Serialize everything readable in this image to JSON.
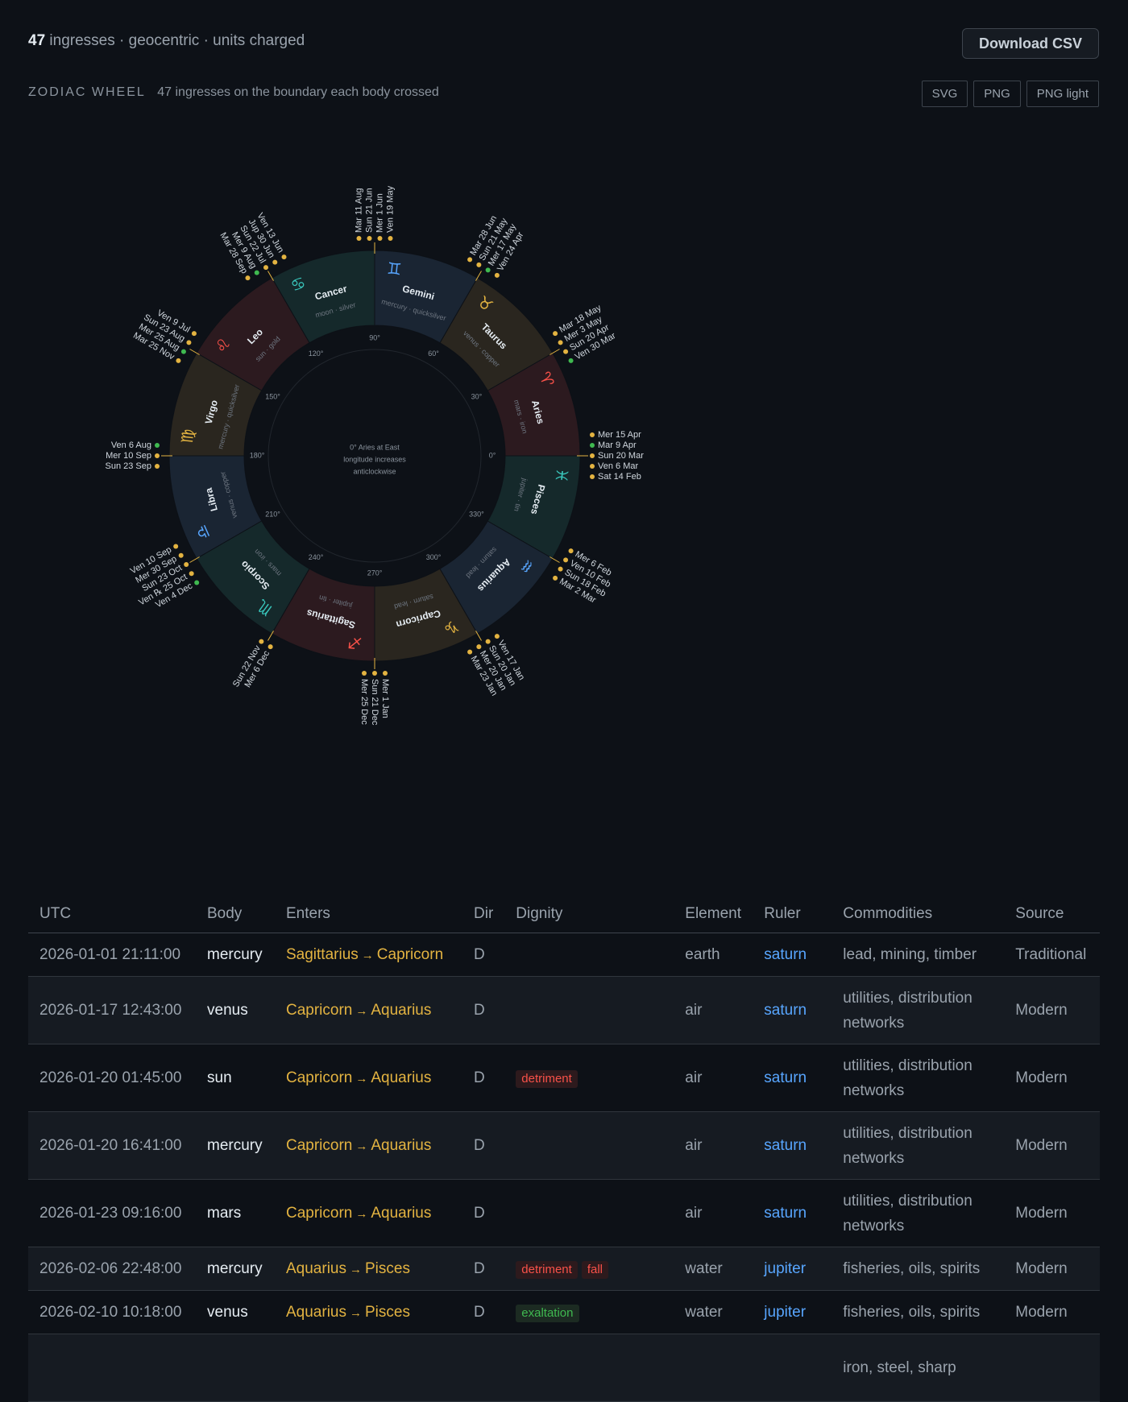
{
  "header": {
    "count": "47",
    "summary": "ingresses · geocentric · units charged",
    "download_label": "Download CSV"
  },
  "wheel_section": {
    "label": "ZODIAC WHEEL",
    "subtitle": "47 ingresses on the boundary each body crossed",
    "buttons": [
      "SVG",
      "PNG",
      "PNG light"
    ]
  },
  "wheel": {
    "center_note": [
      "0° Aries at East",
      "longitude increases",
      "anticlockwise"
    ],
    "colors": {
      "fire": "#2c1a1f",
      "earth": "#2a261f",
      "air": "#1a2533",
      "water": "#15292b",
      "dot_direct": "#e3b341",
      "dot_other": "#3fb950"
    },
    "signs": [
      {
        "name": "Aries",
        "glyph": "♈",
        "ruler": "mars · iron",
        "element": "fire",
        "glyph_color": "#f85149"
      },
      {
        "name": "Taurus",
        "glyph": "♉",
        "ruler": "venus · copper",
        "element": "earth",
        "glyph_color": "#e3b341"
      },
      {
        "name": "Gemini",
        "glyph": "♊",
        "ruler": "mercury · quicksilver",
        "element": "air",
        "glyph_color": "#58a6ff"
      },
      {
        "name": "Cancer",
        "glyph": "♋",
        "ruler": "moon · silver",
        "element": "water",
        "glyph_color": "#39c5bb"
      },
      {
        "name": "Leo",
        "glyph": "♌",
        "ruler": "sun · gold",
        "element": "fire",
        "glyph_color": "#f85149"
      },
      {
        "name": "Virgo",
        "glyph": "♍",
        "ruler": "mercury · quicksilver",
        "element": "earth",
        "glyph_color": "#e3b341"
      },
      {
        "name": "Libra",
        "glyph": "♎",
        "ruler": "venus · copper",
        "element": "air",
        "glyph_color": "#58a6ff"
      },
      {
        "name": "Scorpio",
        "glyph": "♏",
        "ruler": "mars · iron",
        "element": "water",
        "glyph_color": "#39c5bb"
      },
      {
        "name": "Sagittarius",
        "glyph": "♐",
        "ruler": "jupiter · tin",
        "element": "fire",
        "glyph_color": "#f85149"
      },
      {
        "name": "Capricorn",
        "glyph": "♑",
        "ruler": "saturn · lead",
        "element": "earth",
        "glyph_color": "#e3b341"
      },
      {
        "name": "Aquarius",
        "glyph": "♒",
        "ruler": "saturn · lead",
        "element": "air",
        "glyph_color": "#58a6ff"
      },
      {
        "name": "Pisces",
        "glyph": "♓",
        "ruler": "jupiter · tin",
        "element": "water",
        "glyph_color": "#39c5bb"
      }
    ],
    "degree_labels": [
      "0°",
      "30°",
      "60°",
      "90°",
      "120°",
      "150°",
      "180°",
      "210°",
      "240°",
      "270°",
      "300°",
      "330°"
    ],
    "boundaries": [
      {
        "longitude": 0,
        "events": [
          {
            "label": "Sat 14 Feb",
            "kind": "direct"
          },
          {
            "label": "Ven 6 Mar",
            "kind": "direct"
          },
          {
            "label": "Sun 20 Mar",
            "kind": "direct"
          },
          {
            "label": "Mar 9 Apr",
            "kind": "other"
          },
          {
            "label": "Mer 15 Apr",
            "kind": "direct"
          }
        ]
      },
      {
        "longitude": 30,
        "events": [
          {
            "label": "Ven 30 Mar",
            "kind": "other"
          },
          {
            "label": "Sun 20 Apr",
            "kind": "direct"
          },
          {
            "label": "Mer 3 May",
            "kind": "direct"
          },
          {
            "label": "Mar 18 May",
            "kind": "direct"
          }
        ]
      },
      {
        "longitude": 60,
        "events": [
          {
            "label": "Ven 24 Apr",
            "kind": "direct"
          },
          {
            "label": "Mer 17 May",
            "kind": "other"
          },
          {
            "label": "Sun 21 May",
            "kind": "direct"
          },
          {
            "label": "Mar 28 Jun",
            "kind": "direct"
          }
        ]
      },
      {
        "longitude": 90,
        "events": [
          {
            "label": "Ven 19 May",
            "kind": "direct"
          },
          {
            "label": "Mer 1 Jun",
            "kind": "direct"
          },
          {
            "label": "Sun 21 Jun",
            "kind": "direct"
          },
          {
            "label": "Mar 11 Aug",
            "kind": "direct"
          }
        ]
      },
      {
        "longitude": 120,
        "events": [
          {
            "label": "Ven 13 Jun",
            "kind": "direct"
          },
          {
            "label": "Jup 30 Jun",
            "kind": "direct"
          },
          {
            "label": "Sun 22 Jul",
            "kind": "direct"
          },
          {
            "label": "Mer 9 Aug",
            "kind": "other"
          },
          {
            "label": "Mar 28 Sep",
            "kind": "direct"
          }
        ]
      },
      {
        "longitude": 150,
        "events": [
          {
            "label": "Ven 9 Jul",
            "kind": "direct"
          },
          {
            "label": "Sun 23 Aug",
            "kind": "direct"
          },
          {
            "label": "Mer 25 Aug",
            "kind": "other"
          },
          {
            "label": "Mar 25 Nov",
            "kind": "direct"
          }
        ]
      },
      {
        "longitude": 180,
        "events": [
          {
            "label": "Ven 6 Aug",
            "kind": "other"
          },
          {
            "label": "Mer 10 Sep",
            "kind": "direct"
          },
          {
            "label": "Sun 23 Sep",
            "kind": "direct"
          }
        ]
      },
      {
        "longitude": 210,
        "events": [
          {
            "label": "Ven 10 Sep",
            "kind": "direct"
          },
          {
            "label": "Mer 30 Sep",
            "kind": "direct"
          },
          {
            "label": "Sun 23 Oct",
            "kind": "direct"
          },
          {
            "label": "Ven ℞ 25 Oct",
            "kind": "direct"
          },
          {
            "label": "Ven 4 Dec",
            "kind": "other"
          }
        ]
      },
      {
        "longitude": 240,
        "events": [
          {
            "label": "Sun 22 Nov",
            "kind": "direct"
          },
          {
            "label": "Mer 6 Dec",
            "kind": "direct"
          }
        ]
      },
      {
        "longitude": 270,
        "events": [
          {
            "label": "Mer 25 Dec",
            "kind": "direct"
          },
          {
            "label": "Sun 21 Dec",
            "kind": "direct"
          },
          {
            "label": "Mer 1 Jan",
            "kind": "direct"
          }
        ]
      },
      {
        "longitude": 300,
        "events": [
          {
            "label": "Mar 23 Jan",
            "kind": "direct"
          },
          {
            "label": "Mer 20 Jan",
            "kind": "direct"
          },
          {
            "label": "Sun 20 Jan",
            "kind": "direct"
          },
          {
            "label": "Ven 17 Jan",
            "kind": "direct"
          }
        ]
      },
      {
        "longitude": 330,
        "events": [
          {
            "label": "Mar 2 Mar",
            "kind": "direct"
          },
          {
            "label": "Sun 18 Feb",
            "kind": "direct"
          },
          {
            "label": "Ven 10 Feb",
            "kind": "direct"
          },
          {
            "label": "Mer 6 Feb",
            "kind": "direct"
          }
        ]
      }
    ]
  },
  "table": {
    "headers": [
      "UTC",
      "Body",
      "Enters",
      "Dir",
      "Dignity",
      "Element",
      "Ruler",
      "Commodities",
      "Source"
    ],
    "rows": [
      {
        "utc": "2026-01-01 21:11:00",
        "body": "mercury",
        "from": "Sagittarius",
        "to": "Capricorn",
        "dir": "D",
        "dignity": [],
        "element": "earth",
        "ruler": "saturn",
        "commodities": "lead, mining, timber",
        "source": "Traditional"
      },
      {
        "utc": "2026-01-17 12:43:00",
        "body": "venus",
        "from": "Capricorn",
        "to": "Aquarius",
        "dir": "D",
        "dignity": [],
        "element": "air",
        "ruler": "saturn",
        "commodities": "utilities, distribution networks",
        "source": "Modern"
      },
      {
        "utc": "2026-01-20 01:45:00",
        "body": "sun",
        "from": "Capricorn",
        "to": "Aquarius",
        "dir": "D",
        "dignity": [
          "detriment"
        ],
        "element": "air",
        "ruler": "saturn",
        "commodities": "utilities, distribution networks",
        "source": "Modern"
      },
      {
        "utc": "2026-01-20 16:41:00",
        "body": "mercury",
        "from": "Capricorn",
        "to": "Aquarius",
        "dir": "D",
        "dignity": [],
        "element": "air",
        "ruler": "saturn",
        "commodities": "utilities, distribution networks",
        "source": "Modern"
      },
      {
        "utc": "2026-01-23 09:16:00",
        "body": "mars",
        "from": "Capricorn",
        "to": "Aquarius",
        "dir": "D",
        "dignity": [],
        "element": "air",
        "ruler": "saturn",
        "commodities": "utilities, distribution networks",
        "source": "Modern"
      },
      {
        "utc": "2026-02-06 22:48:00",
        "body": "mercury",
        "from": "Aquarius",
        "to": "Pisces",
        "dir": "D",
        "dignity": [
          "detriment",
          "fall"
        ],
        "element": "water",
        "ruler": "jupiter",
        "commodities": "fisheries, oils, spirits",
        "source": "Modern"
      },
      {
        "utc": "2026-02-10 10:18:00",
        "body": "venus",
        "from": "Aquarius",
        "to": "Pisces",
        "dir": "D",
        "dignity": [
          "exaltation"
        ],
        "element": "water",
        "ruler": "jupiter",
        "commodities": "fisheries, oils, spirits",
        "source": "Modern"
      },
      {
        "utc": "",
        "body": "",
        "from": "",
        "to": "",
        "dir": "",
        "dignity": [],
        "element": "",
        "ruler": "",
        "commodities": "iron, steel, sharp",
        "source": ""
      }
    ]
  }
}
